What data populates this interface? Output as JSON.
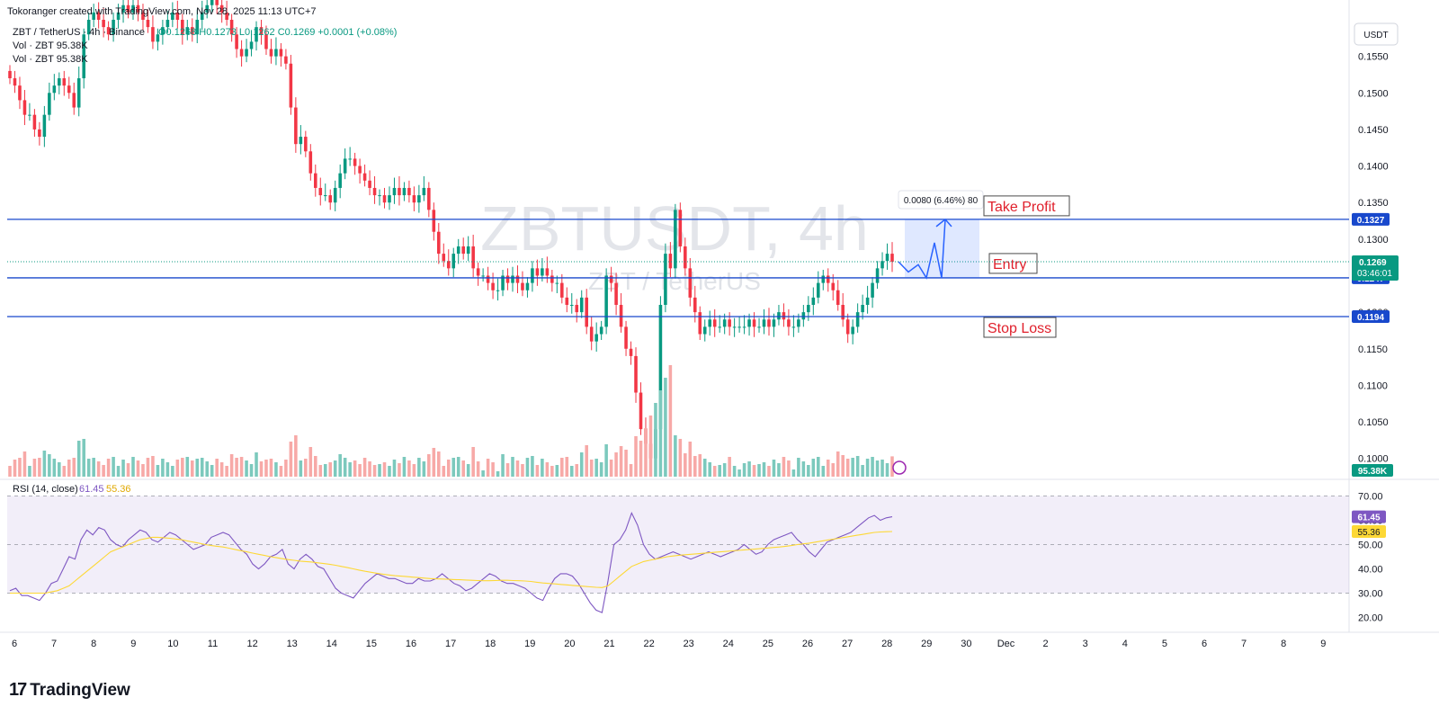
{
  "header": {
    "created_by": "Tokoranger created with TradingView.com, Nov 28, 2025 11:13 UTC+7",
    "symbol_line": "ZBT / TetherUS · 4h · Binance",
    "ohlc": "O0.1268  H0.1273  L0.1262  C0.1269  +0.0001 (+0.08%)",
    "vol_lines": [
      "Vol · ZBT  95.38K",
      "Vol · ZBT  95.38K"
    ]
  },
  "watermark": {
    "title": "ZBTUSDT, 4h",
    "subtitle": "ZBT / TetherUS"
  },
  "currency": "USDT",
  "rsi_legend": {
    "label": "RSI (14, close)",
    "rsi": "61.45",
    "ma": "55.36"
  },
  "brand": "TradingView",
  "colors": {
    "up": "#089981",
    "down": "#f23645",
    "vol_up": "#7cc9bd",
    "vol_down": "#f7a9a7",
    "rsi": "#7e57c2",
    "rsi_ma": "#fdd835",
    "level": "#1848cc",
    "label_text": "#e0202c"
  },
  "chart_data": [
    {
      "type": "candlestick",
      "title": "ZBTUSDT, 4h",
      "y_ticks": [
        0.1,
        0.105,
        0.11,
        0.115,
        0.12,
        0.125,
        0.13,
        0.135,
        0.14,
        0.145,
        0.15,
        0.155
      ],
      "y_tick_labels": [
        "0.1000",
        "0.1050",
        "0.1100",
        "0.1150",
        "0.1200",
        "0.1250",
        "0.1300",
        "0.1350",
        "0.1400",
        "0.1450",
        "0.1500",
        "0.1550"
      ],
      "ylim": [
        0.0975,
        0.16
      ],
      "x_tick_labels": [
        "6",
        "7",
        "8",
        "9",
        "10",
        "11",
        "12",
        "13",
        "14",
        "15",
        "16",
        "17",
        "18",
        "19",
        "20",
        "21",
        "22",
        "23",
        "24",
        "25",
        "26",
        "27",
        "28",
        "29",
        "30",
        "Dec",
        "2",
        "3",
        "4",
        "5",
        "6",
        "7",
        "8",
        "9"
      ],
      "ohlc_close": [
        0.152,
        0.151,
        0.149,
        0.147,
        0.147,
        0.145,
        0.144,
        0.147,
        0.15,
        0.151,
        0.152,
        0.151,
        0.15,
        0.148,
        0.152,
        0.158,
        0.16,
        0.161,
        0.16,
        0.159,
        0.158,
        0.16,
        0.161,
        0.162,
        0.161,
        0.162,
        0.161,
        0.16,
        0.159,
        0.157,
        0.158,
        0.159,
        0.16,
        0.161,
        0.16,
        0.158,
        0.159,
        0.158,
        0.16,
        0.161,
        0.162,
        0.163,
        0.162,
        0.161,
        0.16,
        0.158,
        0.156,
        0.155,
        0.156,
        0.157,
        0.159,
        0.158,
        0.156,
        0.155,
        0.156,
        0.155,
        0.154,
        0.148,
        0.143,
        0.144,
        0.142,
        0.139,
        0.137,
        0.136,
        0.136,
        0.135,
        0.137,
        0.139,
        0.141,
        0.141,
        0.14,
        0.139,
        0.138,
        0.137,
        0.136,
        0.136,
        0.135,
        0.136,
        0.137,
        0.136,
        0.137,
        0.136,
        0.135,
        0.136,
        0.137,
        0.134,
        0.131,
        0.128,
        0.127,
        0.126,
        0.128,
        0.129,
        0.128,
        0.129,
        0.126,
        0.125,
        0.125,
        0.124,
        0.123,
        0.123,
        0.125,
        0.124,
        0.125,
        0.124,
        0.123,
        0.124,
        0.126,
        0.125,
        0.126,
        0.125,
        0.124,
        0.124,
        0.122,
        0.121,
        0.121,
        0.12,
        0.122,
        0.118,
        0.116,
        0.117,
        0.118,
        0.125,
        0.124,
        0.121,
        0.118,
        0.115,
        0.114,
        0.109,
        0.104,
        0.102,
        0.1,
        0.104,
        0.121,
        0.128,
        0.126,
        0.134,
        0.129,
        0.126,
        0.122,
        0.12,
        0.117,
        0.118,
        0.119,
        0.118,
        0.118,
        0.119,
        0.118,
        0.118,
        0.118,
        0.118,
        0.119,
        0.118,
        0.118,
        0.119,
        0.118,
        0.119,
        0.12,
        0.119,
        0.118,
        0.118,
        0.119,
        0.12,
        0.121,
        0.122,
        0.124,
        0.125,
        0.124,
        0.123,
        0.121,
        0.119,
        0.117,
        0.118,
        0.12,
        0.121,
        0.122,
        0.124,
        0.126,
        0.127,
        0.128,
        0.1269
      ],
      "levels": [
        {
          "label": "Take Profit",
          "value": 0.1327
        },
        {
          "label": "Entry",
          "value": 0.1247
        },
        {
          "label": "Stop Loss",
          "value": 0.1194
        }
      ],
      "current_price": {
        "value": "0.1269",
        "countdown": "03:46:01"
      },
      "volume_label": "95.38K",
      "measure_label": "0.0080 (6.46%) 80",
      "projection_path": [
        0.1269,
        0.1255,
        0.1265,
        0.1247,
        0.1295,
        0.1247,
        0.1327
      ]
    },
    {
      "type": "line",
      "title": "RSI (14, close)",
      "y_ticks": [
        20,
        30,
        40,
        50,
        60,
        70
      ],
      "y_tick_labels": [
        "20.00",
        "30.00",
        "40.00",
        "50.00",
        "60.00",
        "70.00"
      ],
      "ylim": [
        15,
        75
      ],
      "band": [
        30,
        70
      ],
      "series": [
        {
          "name": "RSI",
          "last": "61.45",
          "values": [
            31,
            32,
            29,
            29,
            28,
            27,
            30,
            34,
            35,
            40,
            45,
            44,
            52,
            56,
            54,
            57,
            56,
            52,
            50,
            49,
            52,
            54,
            56,
            55,
            52,
            51,
            53,
            55,
            54,
            52,
            50,
            48,
            49,
            50,
            53,
            54,
            55,
            54,
            51,
            48,
            46,
            42,
            40,
            42,
            45,
            46,
            48,
            42,
            40,
            44,
            46,
            44,
            41,
            40,
            36,
            32,
            30,
            29,
            28,
            31,
            34,
            36,
            38,
            37,
            36,
            36,
            35,
            34,
            34,
            36,
            35,
            35,
            36,
            38,
            36,
            34,
            33,
            31,
            32,
            34,
            36,
            38,
            37,
            35,
            34,
            34,
            33,
            32,
            30,
            28,
            27,
            32,
            36,
            38,
            38,
            37,
            34,
            30,
            26,
            23,
            22,
            35,
            50,
            52,
            56,
            63,
            58,
            50,
            46,
            44,
            45,
            46,
            47,
            46,
            45,
            44,
            45,
            46,
            47,
            46,
            45,
            46,
            47,
            48,
            50,
            48,
            46,
            47,
            50,
            52,
            53,
            54,
            55,
            52,
            50,
            47,
            45,
            48,
            51,
            52,
            53,
            54,
            55,
            57,
            59,
            61,
            62,
            60,
            61,
            61.45
          ]
        },
        {
          "name": "RSI MA",
          "last": "55.36",
          "values": [
            30,
            30,
            30,
            30,
            30,
            30,
            30,
            30.5,
            31,
            32,
            33,
            35,
            37,
            39,
            41,
            43,
            45,
            47,
            48,
            49,
            50,
            51,
            52,
            52.5,
            53,
            53,
            52.8,
            52.6,
            52.3,
            52,
            51.5,
            51,
            50.5,
            50,
            49.6,
            49.3,
            49,
            48.5,
            48,
            47.5,
            47,
            46.5,
            46,
            45.5,
            45,
            44.6,
            44.2,
            43.8,
            43.5,
            43.2,
            43,
            42.8,
            42.5,
            42.2,
            41.9,
            41.5,
            41,
            40.5,
            40,
            39.5,
            39,
            38.6,
            38.2,
            37.8,
            37.5,
            37.2,
            37,
            36.8,
            36.6,
            36.4,
            36.2,
            36,
            35.9,
            35.8,
            35.7,
            35.6,
            35.5,
            35.4,
            35.3,
            35.2,
            35.1,
            35.1,
            35.2,
            35.3,
            35.3,
            35.2,
            35.1,
            35,
            34.8,
            34.5,
            34.2,
            34,
            33.8,
            33.6,
            33.4,
            33.2,
            33,
            32.8,
            32.6,
            32.4,
            32.3,
            33,
            35,
            37,
            39,
            41,
            42,
            43,
            43.5,
            44,
            44.5,
            45,
            45.3,
            45.6,
            45.8,
            46,
            46.2,
            46.4,
            46.6,
            46.8,
            47,
            47.2,
            47.4,
            47.6,
            47.8,
            48,
            48.2,
            48.4,
            48.6,
            48.8,
            49,
            49.3,
            49.6,
            50,
            50.3,
            50.6,
            51,
            51.4,
            51.8,
            52.2,
            52.6,
            53,
            53.4,
            53.8,
            54.2,
            54.6,
            55,
            55.2,
            55.3,
            55.36
          ]
        }
      ],
      "last_values": {
        "rsi": "61.45",
        "ma": "55.36"
      }
    }
  ]
}
